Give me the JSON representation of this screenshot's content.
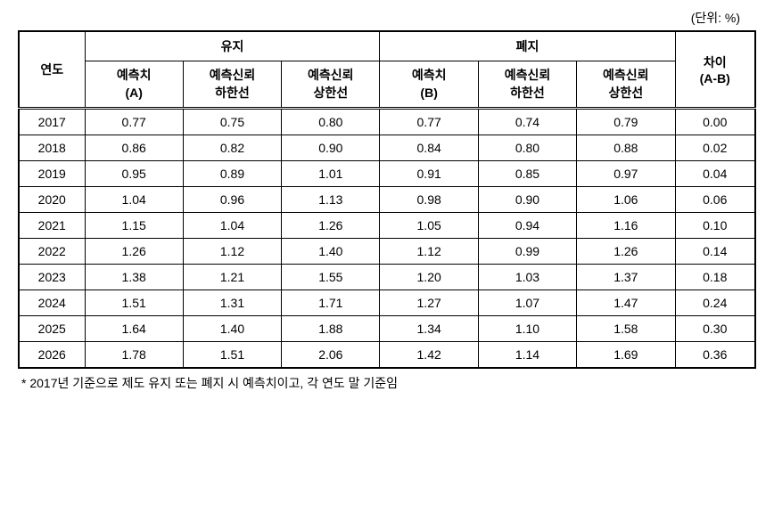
{
  "unit_label": "(단위: %)",
  "headers": {
    "year": "연도",
    "group_a": "유지",
    "group_b": "폐지",
    "diff": "차이\n(A-B)",
    "sub": {
      "pred_a": "예측치\n(A)",
      "lower": "예측신뢰\n하한선",
      "upper": "예측신뢰\n상한선",
      "pred_b": "예측치\n(B)"
    }
  },
  "rows": [
    {
      "year": "2017",
      "a_pred": "0.77",
      "a_low": "0.75",
      "a_high": "0.80",
      "b_pred": "0.77",
      "b_low": "0.74",
      "b_high": "0.79",
      "diff": "0.00"
    },
    {
      "year": "2018",
      "a_pred": "0.86",
      "a_low": "0.82",
      "a_high": "0.90",
      "b_pred": "0.84",
      "b_low": "0.80",
      "b_high": "0.88",
      "diff": "0.02"
    },
    {
      "year": "2019",
      "a_pred": "0.95",
      "a_low": "0.89",
      "a_high": "1.01",
      "b_pred": "0.91",
      "b_low": "0.85",
      "b_high": "0.97",
      "diff": "0.04"
    },
    {
      "year": "2020",
      "a_pred": "1.04",
      "a_low": "0.96",
      "a_high": "1.13",
      "b_pred": "0.98",
      "b_low": "0.90",
      "b_high": "1.06",
      "diff": "0.06"
    },
    {
      "year": "2021",
      "a_pred": "1.15",
      "a_low": "1.04",
      "a_high": "1.26",
      "b_pred": "1.05",
      "b_low": "0.94",
      "b_high": "1.16",
      "diff": "0.10"
    },
    {
      "year": "2022",
      "a_pred": "1.26",
      "a_low": "1.12",
      "a_high": "1.40",
      "b_pred": "1.12",
      "b_low": "0.99",
      "b_high": "1.26",
      "diff": "0.14"
    },
    {
      "year": "2023",
      "a_pred": "1.38",
      "a_low": "1.21",
      "a_high": "1.55",
      "b_pred": "1.20",
      "b_low": "1.03",
      "b_high": "1.37",
      "diff": "0.18"
    },
    {
      "year": "2024",
      "a_pred": "1.51",
      "a_low": "1.31",
      "a_high": "1.71",
      "b_pred": "1.27",
      "b_low": "1.07",
      "b_high": "1.47",
      "diff": "0.24"
    },
    {
      "year": "2025",
      "a_pred": "1.64",
      "a_low": "1.40",
      "a_high": "1.88",
      "b_pred": "1.34",
      "b_low": "1.10",
      "b_high": "1.58",
      "diff": "0.30"
    },
    {
      "year": "2026",
      "a_pred": "1.78",
      "a_low": "1.51",
      "a_high": "2.06",
      "b_pred": "1.42",
      "b_low": "1.14",
      "b_high": "1.69",
      "diff": "0.36"
    }
  ],
  "footnote": "* 2017년 기준으로 제도 유지 또는 폐지 시 예측치이고, 각 연도 말 기준임"
}
